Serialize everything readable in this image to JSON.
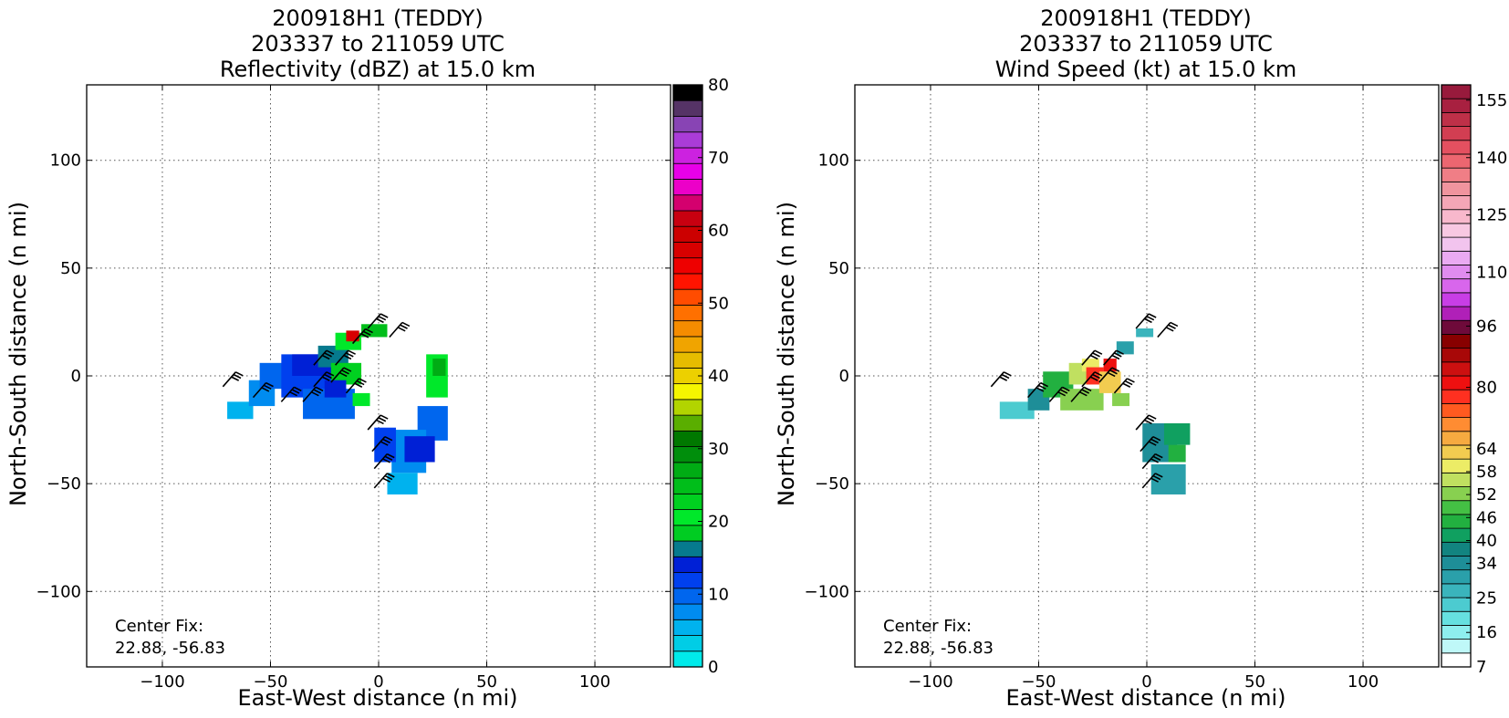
{
  "chart_data": [
    {
      "type": "heatmap",
      "title_lines": [
        "200918H1 (TEDDY)",
        "203337 to 211059 UTC",
        "Reflectivity (dBZ) at 15.0 km"
      ],
      "xlabel": "East-West distance (n mi)",
      "ylabel": "North-South distance (n mi)",
      "xlim": [
        -135,
        135
      ],
      "ylim": [
        -135,
        135
      ],
      "xticks": [
        -100,
        -50,
        0,
        50,
        100
      ],
      "yticks": [
        -100,
        -50,
        0,
        50,
        100
      ],
      "grid": true,
      "annotation_lines": [
        "Center Fix:",
        "22.88, -56.83"
      ],
      "colorbar": {
        "min": 0,
        "max": 80,
        "tick_values": [
          0,
          10,
          20,
          30,
          40,
          50,
          60,
          70,
          80
        ],
        "colors": [
          "#00eaea",
          "#00cde6",
          "#00b2ee",
          "#008cf0",
          "#0066ee",
          "#0040ee",
          "#0020d6",
          "#067a8e",
          "#00cc22",
          "#00e82a",
          "#00d020",
          "#00be1a",
          "#00ac14",
          "#008e0c",
          "#007800",
          "#5aae00",
          "#b2d400",
          "#f5f500",
          "#ecd000",
          "#e6bc00",
          "#f0a400",
          "#f58c00",
          "#ff7000",
          "#ff4c00",
          "#ff1400",
          "#ee0000",
          "#d80000",
          "#cc0000",
          "#c80010",
          "#d4006e",
          "#ec00c8",
          "#e800e8",
          "#cc22e0",
          "#aa3cd8",
          "#8844b4",
          "#553366",
          "#000000"
        ]
      },
      "cells": [
        {
          "x": -70,
          "y": -20,
          "w": 12,
          "h": 8,
          "v": 2
        },
        {
          "x": -60,
          "y": -14,
          "w": 12,
          "h": 12,
          "v": 3
        },
        {
          "x": -55,
          "y": -6,
          "w": 14,
          "h": 12,
          "v": 4
        },
        {
          "x": -45,
          "y": -10,
          "w": 24,
          "h": 20,
          "v": 5
        },
        {
          "x": -35,
          "y": -20,
          "w": 24,
          "h": 14,
          "v": 4
        },
        {
          "x": -40,
          "y": 0,
          "w": 20,
          "h": 10,
          "v": 6
        },
        {
          "x": -28,
          "y": 4,
          "w": 14,
          "h": 10,
          "v": 7
        },
        {
          "x": -20,
          "y": 12,
          "w": 12,
          "h": 8,
          "v": 9
        },
        {
          "x": -15,
          "y": 16,
          "w": 6,
          "h": 5,
          "v": 26
        },
        {
          "x": -8,
          "y": 18,
          "w": 12,
          "h": 6,
          "v": 11
        },
        {
          "x": -22,
          "y": -4,
          "w": 14,
          "h": 10,
          "v": 10
        },
        {
          "x": -12,
          "y": -14,
          "w": 8,
          "h": 6,
          "v": 9
        },
        {
          "x": -25,
          "y": -10,
          "w": 10,
          "h": 8,
          "v": 6
        },
        {
          "x": 22,
          "y": -10,
          "w": 10,
          "h": 20,
          "v": 9
        },
        {
          "x": 25,
          "y": 0,
          "w": 6,
          "h": 8,
          "v": 12
        },
        {
          "x": 18,
          "y": -30,
          "w": 14,
          "h": 16,
          "v": 4
        },
        {
          "x": 6,
          "y": -45,
          "w": 16,
          "h": 20,
          "v": 3
        },
        {
          "x": -2,
          "y": -40,
          "w": 10,
          "h": 16,
          "v": 5
        },
        {
          "x": 4,
          "y": -55,
          "w": 14,
          "h": 10,
          "v": 2
        },
        {
          "x": 12,
          "y": -40,
          "w": 14,
          "h": 12,
          "v": 6
        }
      ],
      "barbs": [
        {
          "x": -72,
          "y": -5
        },
        {
          "x": -58,
          "y": -10
        },
        {
          "x": -45,
          "y": -12
        },
        {
          "x": -35,
          "y": -12
        },
        {
          "x": -30,
          "y": -5
        },
        {
          "x": -22,
          "y": -3
        },
        {
          "x": -15,
          "y": -8
        },
        {
          "x": -30,
          "y": 5
        },
        {
          "x": -20,
          "y": 5
        },
        {
          "x": -12,
          "y": 15
        },
        {
          "x": -5,
          "y": 22
        },
        {
          "x": 5,
          "y": 18
        },
        {
          "x": -5,
          "y": -25
        },
        {
          "x": -3,
          "y": -35
        },
        {
          "x": -2,
          "y": -43
        },
        {
          "x": -2,
          "y": -52
        }
      ]
    },
    {
      "type": "heatmap",
      "title_lines": [
        "200918H1 (TEDDY)",
        "203337 to 211059 UTC",
        "Wind Speed (kt) at 15.0 km"
      ],
      "xlabel": "East-West distance (n mi)",
      "ylabel": "North-South distance (n mi)",
      "xlim": [
        -135,
        135
      ],
      "ylim": [
        -135,
        135
      ],
      "xticks": [
        -100,
        -50,
        0,
        50,
        100
      ],
      "yticks": [
        -100,
        -50,
        0,
        50,
        100
      ],
      "grid": true,
      "annotation_lines": [
        "Center Fix:",
        "22.88, -56.83"
      ],
      "colorbar": {
        "min": 7,
        "max": 159,
        "tick_values": [
          7,
          16,
          25,
          34,
          40,
          46,
          52,
          58,
          64,
          80,
          96,
          110,
          125,
          140,
          155
        ],
        "colors": [
          "#ffffff",
          "#bff8f8",
          "#8eeeee",
          "#66e0e0",
          "#4ccbd0",
          "#3ab4bc",
          "#2aa0aa",
          "#1e8e98",
          "#128480",
          "#10a060",
          "#22b040",
          "#44c044",
          "#88d050",
          "#c0e060",
          "#ecec66",
          "#f2cc50",
          "#f6aa40",
          "#ff8c32",
          "#ff5a20",
          "#ff3020",
          "#ee1010",
          "#cc1010",
          "#a80808",
          "#880000",
          "#6e0a3a",
          "#b020b8",
          "#c83ee6",
          "#d866ec",
          "#e08cef",
          "#eaaaf2",
          "#f2c4ee",
          "#f8c8e2",
          "#f8b8cc",
          "#f4a6b6",
          "#f0949e",
          "#f07e86",
          "#ec6670",
          "#e45060",
          "#d23e52",
          "#be3048",
          "#a82040",
          "#981a3c"
        ]
      },
      "cells": [
        {
          "x": -68,
          "y": -20,
          "w": 16,
          "h": 8,
          "v": 4
        },
        {
          "x": -55,
          "y": -16,
          "w": 10,
          "h": 10,
          "v": 7
        },
        {
          "x": -48,
          "y": -10,
          "w": 14,
          "h": 12,
          "v": 10
        },
        {
          "x": -40,
          "y": -16,
          "w": 20,
          "h": 10,
          "v": 12
        },
        {
          "x": -36,
          "y": -4,
          "w": 10,
          "h": 10,
          "v": 13
        },
        {
          "x": -30,
          "y": 2,
          "w": 8,
          "h": 6,
          "v": 14
        },
        {
          "x": -28,
          "y": -4,
          "w": 8,
          "h": 8,
          "v": 19
        },
        {
          "x": -22,
          "y": -8,
          "w": 10,
          "h": 10,
          "v": 15
        },
        {
          "x": -20,
          "y": 2,
          "w": 6,
          "h": 6,
          "v": 20
        },
        {
          "x": -16,
          "y": -14,
          "w": 8,
          "h": 6,
          "v": 12
        },
        {
          "x": -14,
          "y": 10,
          "w": 8,
          "h": 6,
          "v": 6
        },
        {
          "x": -5,
          "y": 18,
          "w": 8,
          "h": 4,
          "v": 5
        },
        {
          "x": -2,
          "y": -40,
          "w": 16,
          "h": 18,
          "v": 7
        },
        {
          "x": 8,
          "y": -32,
          "w": 12,
          "h": 10,
          "v": 9
        },
        {
          "x": 2,
          "y": -55,
          "w": 16,
          "h": 14,
          "v": 6
        },
        {
          "x": 10,
          "y": -40,
          "w": 8,
          "h": 8,
          "v": 10
        }
      ],
      "barbs": [
        {
          "x": -72,
          "y": -5
        },
        {
          "x": -55,
          "y": -10
        },
        {
          "x": -45,
          "y": -12
        },
        {
          "x": -35,
          "y": -12
        },
        {
          "x": -30,
          "y": -5
        },
        {
          "x": -22,
          "y": -3
        },
        {
          "x": -15,
          "y": -8
        },
        {
          "x": -30,
          "y": 5
        },
        {
          "x": -20,
          "y": 5
        },
        {
          "x": -5,
          "y": 22
        },
        {
          "x": 5,
          "y": 18
        },
        {
          "x": -5,
          "y": -25
        },
        {
          "x": -3,
          "y": -35
        },
        {
          "x": -2,
          "y": -43
        },
        {
          "x": -2,
          "y": -52
        }
      ]
    }
  ]
}
